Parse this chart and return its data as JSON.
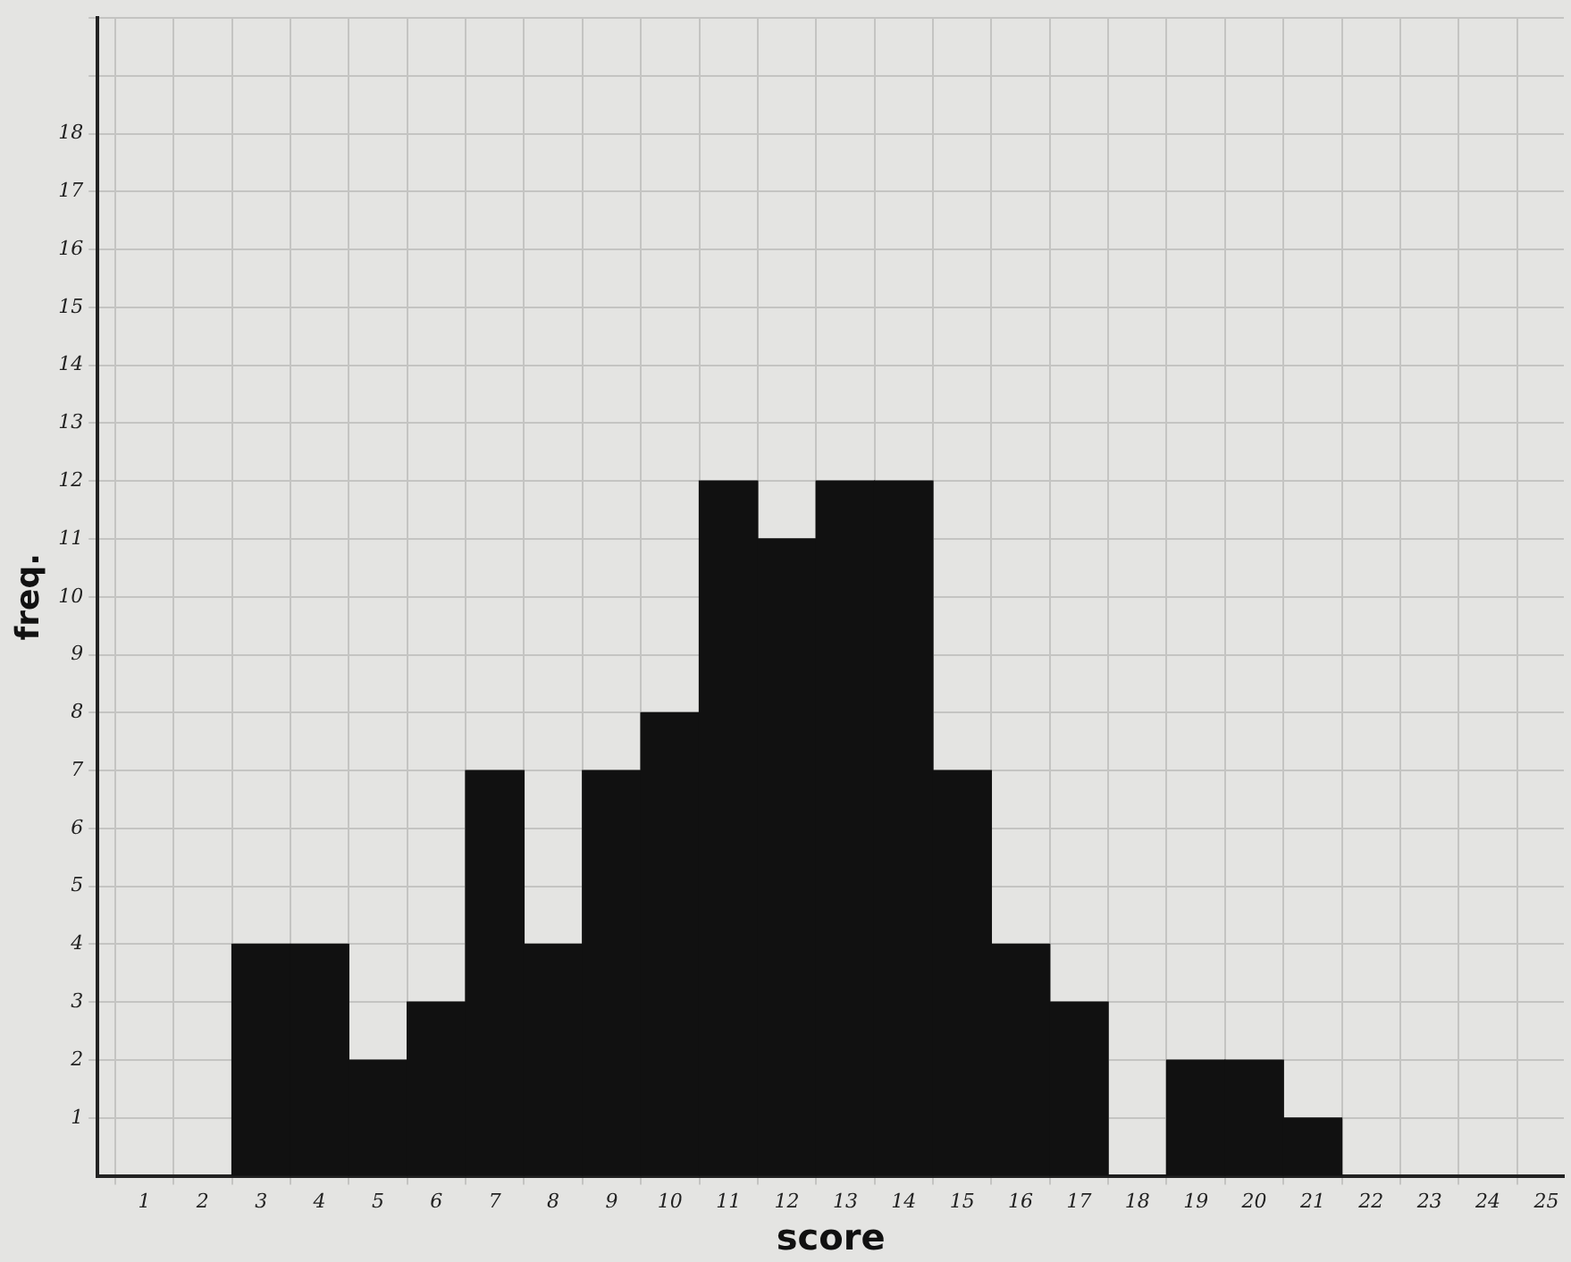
{
  "chart_data": {
    "type": "histogram",
    "xlabel": "score",
    "ylabel": "freq.",
    "bins": [
      2.5,
      3.5,
      4.5,
      5.5,
      6.5,
      7.5,
      8.5,
      9.5,
      10.5,
      11.5,
      12.5,
      13.5,
      14.5,
      15.5,
      16.5,
      17.5,
      18.5,
      19.5,
      20.5,
      21.5
    ],
    "values": [
      4,
      4,
      2,
      3,
      7,
      4,
      7,
      8,
      12,
      11,
      12,
      12,
      7,
      4,
      3,
      0,
      2,
      2,
      1
    ],
    "color": "#111111",
    "xlim": [
      0.2,
      25.3
    ],
    "xticks": [
      1,
      2,
      3,
      4,
      5,
      6,
      7,
      8,
      9,
      10,
      11,
      12,
      13,
      14,
      15,
      16,
      17,
      18,
      19,
      20,
      21,
      22,
      23,
      24,
      25
    ],
    "ylim": [
      0,
      20
    ],
    "yticks": [
      1,
      2,
      3,
      4,
      5,
      6,
      7,
      8,
      9,
      10,
      11,
      12,
      13,
      14,
      15,
      16,
      17,
      18,
      {
        "value": 19,
        "label": null
      },
      {
        "value": 20,
        "label": null
      }
    ],
    "grid": true
  }
}
